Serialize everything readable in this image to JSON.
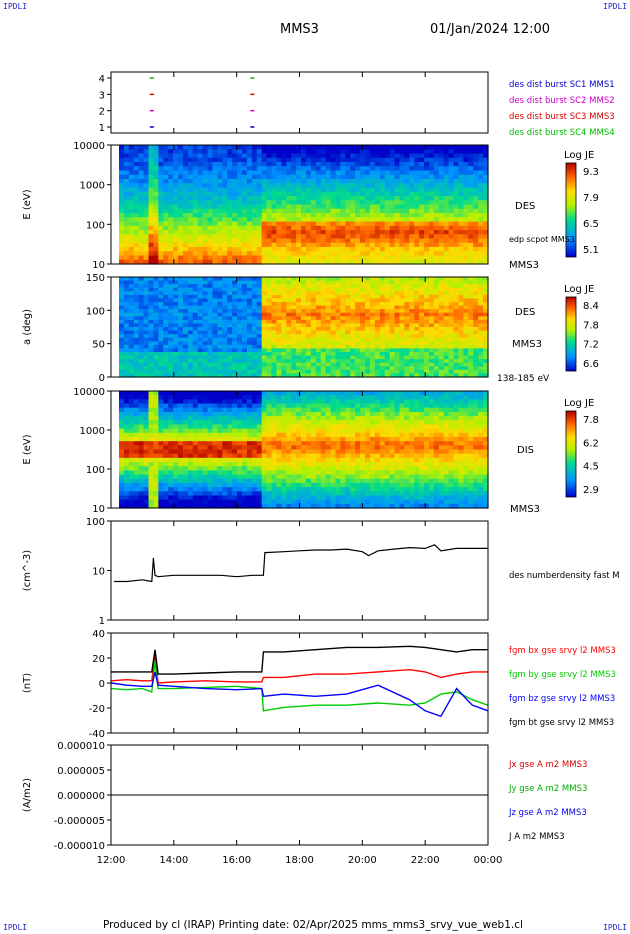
{
  "corner_labels": {
    "tl": "IPDLI",
    "tr": "IPDLI",
    "bl": "IPDLI",
    "br": "IPDLI"
  },
  "header": {
    "spacecraft": "MMS3",
    "datetime": "01/Jan/2024 12:00"
  },
  "footer": {
    "text": "Produced by cl (IRAP)   Printing date: 02/Apr/2025   mms_mms3_srvy_vue_web1.cl"
  },
  "time_axis": {
    "ticks": [
      "12:00",
      "14:00",
      "16:00",
      "18:00",
      "20:00",
      "22:00",
      "00:00"
    ],
    "range_hours": [
      12,
      24
    ]
  },
  "chart_data": [
    {
      "type": "scatter",
      "panel": "burst-availability",
      "yticks": [
        "4",
        "3",
        "2",
        "1"
      ],
      "legend": [
        {
          "label": "des dist burst SC1 MMS1",
          "color": "#0000cc"
        },
        {
          "label": "des dist burst SC2 MMS2",
          "color": "#cc00cc"
        },
        {
          "label": "des dist burst SC3 MMS3",
          "color": "#dd0000"
        },
        {
          "label": "des dist burst SC4 MMS4",
          "color": "#00bb00"
        }
      ],
      "series": [
        {
          "values": [
            {
              "x": 13.3,
              "y": 4
            },
            {
              "x": 16.5,
              "y": 4
            }
          ],
          "color": "#00bb00"
        },
        {
          "values": [
            {
              "x": 13.3,
              "y": 3
            },
            {
              "x": 16.5,
              "y": 3
            }
          ],
          "color": "#dd0000"
        },
        {
          "values": [
            {
              "x": 13.3,
              "y": 2
            },
            {
              "x": 16.5,
              "y": 2
            }
          ],
          "color": "#cc00cc"
        },
        {
          "values": [
            {
              "x": 13.3,
              "y": 1
            },
            {
              "x": 16.5,
              "y": 1
            }
          ],
          "color": "#0000cc"
        }
      ]
    },
    {
      "type": "heatmap",
      "panel": "des-energy-spectrogram",
      "ylabel": "E (eV)",
      "yscale": "log",
      "ylim": [
        10,
        30000
      ],
      "yticks": [
        "10000",
        "1000",
        "100",
        "10"
      ],
      "instrument": "DES",
      "spacecraft": "MMS3",
      "overlay_label": "edp scpot MMS3",
      "colorbar": {
        "title": "Log JE",
        "ticks": [
          "9.3",
          "7.9",
          "6.5",
          "5.1"
        ],
        "range": [
          5.1,
          9.3
        ]
      },
      "summary": {
        "before_boundary_peak_eV": 30,
        "after_boundary_peak_eV": 50,
        "boundary_time_h": 16.85
      }
    },
    {
      "type": "heatmap",
      "panel": "des-pitch-angle",
      "ylabel": "a (deg)",
      "ylim": [
        0,
        180
      ],
      "yticks": [
        "150",
        "100",
        "50",
        "0"
      ],
      "instrument": "DES",
      "spacecraft": "MMS3",
      "energy_band": "138-185 eV",
      "colorbar": {
        "title": "Log JE",
        "ticks": [
          "8.4",
          "7.8",
          "7.2",
          "6.6"
        ],
        "range": [
          6.6,
          8.4
        ]
      }
    },
    {
      "type": "heatmap",
      "panel": "dis-energy-spectrogram",
      "ylabel": "E (eV)",
      "yscale": "log",
      "ylim": [
        10,
        20000
      ],
      "yticks": [
        "10000",
        "1000",
        "100",
        "10"
      ],
      "instrument": "DIS",
      "spacecraft": "MMS3",
      "colorbar": {
        "title": "Log JE",
        "ticks": [
          "7.8",
          "6.2",
          "4.5",
          "2.9"
        ],
        "range": [
          2.9,
          7.8
        ]
      },
      "summary": {
        "before_boundary_peak_eV": 700,
        "after_boundary_peak_eV": 1500,
        "boundary_time_h": 16.85
      }
    },
    {
      "type": "line",
      "panel": "density",
      "ylabel": "(cm^-3)",
      "yscale": "log",
      "ylim": [
        1,
        100
      ],
      "yticks": [
        "100",
        "10",
        "1"
      ],
      "series": [
        {
          "name": "des numberdensity fast M",
          "color": "#000000",
          "x": [
            12.1,
            12.5,
            13.0,
            13.3,
            13.35,
            13.4,
            13.5,
            14.0,
            14.5,
            15.0,
            15.5,
            16.0,
            16.5,
            16.85,
            16.9,
            17.5,
            18.0,
            18.5,
            19.0,
            19.5,
            20.0,
            20.2,
            20.5,
            21.0,
            21.5,
            22.0,
            22.3,
            22.5,
            23.0,
            23.5,
            24.0
          ],
          "y": [
            6,
            6,
            6.5,
            6,
            18,
            8,
            7.5,
            8,
            8,
            8,
            8,
            7.5,
            8,
            8,
            23,
            24,
            25,
            26,
            26,
            27,
            24,
            20,
            25,
            27,
            29,
            28,
            33,
            25,
            28,
            28,
            28
          ]
        }
      ]
    },
    {
      "type": "line",
      "panel": "magnetic-field",
      "ylabel": "(nT)",
      "ylim": [
        -45,
        45
      ],
      "yticks": [
        "40",
        "20",
        "0",
        "-20",
        "-40"
      ],
      "x": [
        12.0,
        12.5,
        13.0,
        13.3,
        13.4,
        13.5,
        14.0,
        15.0,
        16.0,
        16.8,
        16.85,
        17.5,
        18.5,
        19.5,
        20.5,
        21.5,
        22.0,
        22.5,
        23.0,
        23.5,
        24.0
      ],
      "series": [
        {
          "name": "fgm bx gse srvy l2 MMS3",
          "color": "#ff0000",
          "values": [
            2,
            3,
            2,
            2,
            25,
            0,
            1,
            2,
            1,
            1,
            5,
            5,
            8,
            8,
            10,
            12,
            10,
            5,
            8,
            10,
            10
          ]
        },
        {
          "name": "fgm by gse srvy l2 MMS3",
          "color": "#00cc00",
          "values": [
            -5,
            -6,
            -5,
            -8,
            20,
            -5,
            -5,
            -4,
            -3,
            -5,
            -25,
            -22,
            -20,
            -20,
            -18,
            -20,
            -18,
            -10,
            -8,
            -15,
            -20
          ]
        },
        {
          "name": "fgm bz gse srvy l2 MMS3",
          "color": "#0000ff",
          "values": [
            0,
            -2,
            -3,
            -3,
            10,
            -2,
            -3,
            -5,
            -6,
            -5,
            -12,
            -10,
            -12,
            -10,
            -2,
            -15,
            -25,
            -30,
            -5,
            -20,
            -25
          ]
        },
        {
          "name": "fgm bt gse srvy l2 MMS3",
          "color": "#000000",
          "values": [
            10,
            10,
            10,
            10,
            30,
            8,
            8,
            9,
            10,
            10,
            28,
            28,
            30,
            32,
            32,
            33,
            32,
            30,
            28,
            30,
            30
          ]
        }
      ]
    },
    {
      "type": "line",
      "panel": "current-density",
      "ylabel": "(A/m2)",
      "ylim": [
        -1e-05,
        1e-05
      ],
      "yticks": [
        "0.000010",
        "0.000005",
        "0.000000",
        "-0.000005",
        "-0.000010"
      ],
      "x": [
        12.0,
        13.3,
        13.4,
        16.85,
        16.9,
        24.0
      ],
      "series": [
        {
          "name": "Jx gse A m2 MMS3",
          "color": "#dd0000",
          "values": [
            0,
            0,
            0,
            0,
            0,
            0
          ]
        },
        {
          "name": "Jy gse A m2 MMS3",
          "color": "#00aa00",
          "values": [
            0,
            0,
            0,
            0,
            0,
            0
          ]
        },
        {
          "name": "Jz gse A m2 MMS3",
          "color": "#0000dd",
          "values": [
            0,
            0,
            0,
            0,
            0,
            0
          ]
        },
        {
          "name": "J A m2 MMS3",
          "color": "#000000",
          "values": [
            0,
            0,
            0,
            0,
            0,
            0
          ]
        }
      ]
    }
  ]
}
